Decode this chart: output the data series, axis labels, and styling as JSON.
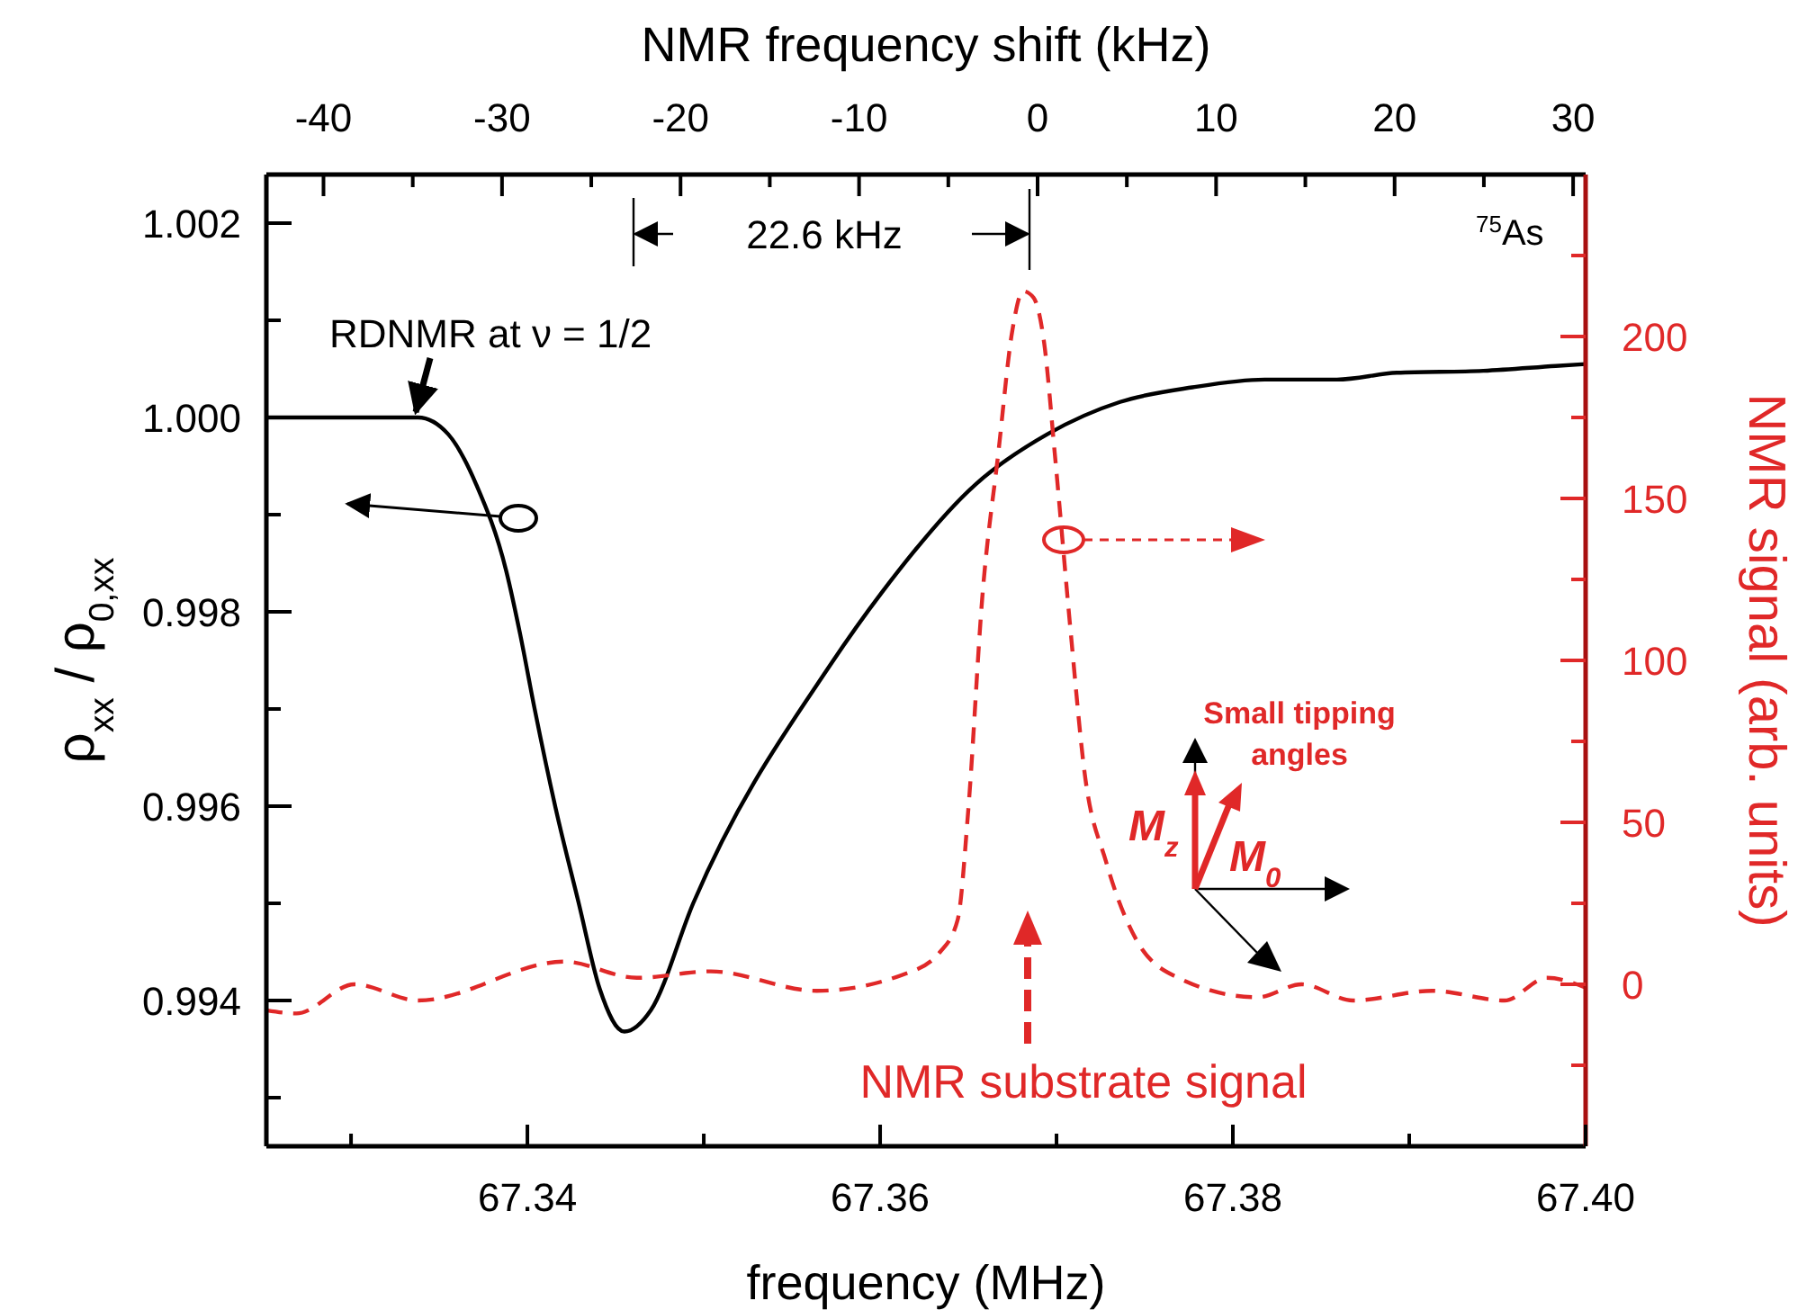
{
  "chart_data": {
    "type": "line",
    "xlabel": "frequency (MHz)",
    "ylabel": "ρ$_{xx}$ / ρ$_{0,xx}$",
    "y2label": "NMR signal (arb. units)",
    "x2label": "NMR frequency shift (kHz)",
    "xlim": [
      67.3252,
      67.4
    ],
    "xticks": [
      {
        "value": 67.33,
        "label": null
      },
      67.34,
      {
        "value": 67.35,
        "label": null
      },
      67.36,
      {
        "value": 67.37,
        "label": null
      },
      67.38,
      {
        "value": 67.39,
        "label": null
      },
      {
        "value": 67.4,
        "label": "67.40"
      }
    ],
    "x2lim": [
      -43.2,
      30.7
    ],
    "x2ticks": [
      -40,
      {
        "value": -35,
        "label": null
      },
      -30,
      {
        "value": -25,
        "label": null
      },
      -20,
      {
        "value": -15,
        "label": null
      },
      -10,
      {
        "value": -5,
        "label": null
      },
      0,
      {
        "value": 5,
        "label": null
      },
      10,
      {
        "value": 15,
        "label": null
      },
      20,
      {
        "value": 25,
        "label": null
      },
      30
    ],
    "ylim": [
      0.9925,
      1.0025
    ],
    "yticks": [
      {
        "value": 0.993,
        "label": null
      },
      0.994,
      {
        "value": 0.995,
        "label": null
      },
      0.996,
      {
        "value": 0.997,
        "label": null
      },
      0.998,
      {
        "value": 0.999,
        "label": null
      },
      {
        "value": 1,
        "label": "1.000"
      },
      {
        "value": 1.001,
        "label": null
      },
      1.002
    ],
    "y2lim": [
      -50,
      250
    ],
    "y2ticks": [
      {
        "value": -25,
        "label": null
      },
      0,
      {
        "value": 25,
        "label": null
      },
      50,
      {
        "value": 75,
        "label": null
      },
      100,
      {
        "value": 125,
        "label": null
      },
      150,
      {
        "value": 175,
        "label": null
      },
      200,
      {
        "value": 225,
        "label": null
      }
    ],
    "series": [
      {
        "color": "#000000",
        "line_style": "solid",
        "x": [
          67.3252,
          67.3338,
          67.3355,
          67.3371,
          67.3388,
          67.3396,
          67.3404,
          67.3416,
          67.3429,
          67.3441,
          67.3455,
          67.347,
          67.3494,
          67.3572,
          67.3601,
          67.3654,
          67.3695,
          67.3736,
          67.3777,
          67.3818,
          67.3859,
          67.3893,
          67.3942,
          67.3983,
          67.4
        ],
        "values": [
          1.0,
          1.0,
          0.99983,
          0.99931,
          0.99842,
          0.99776,
          0.99701,
          0.99598,
          0.99501,
          0.99412,
          0.99368,
          0.9939,
          0.995,
          0.99746,
          0.9982,
          0.99931,
          0.99983,
          1.00016,
          1.00031,
          1.00039,
          1.00039,
          1.00046,
          1.00048,
          1.00053,
          1.00055
        ]
      },
      {
        "axis": "y2",
        "color": "#e02828",
        "line_style": "dashed",
        "x": [
          67.3252,
          67.3269,
          67.3302,
          67.3338,
          67.3421,
          67.3462,
          67.3504,
          67.3564,
          67.3613,
          67.3634,
          67.3644,
          67.365,
          67.3658,
          67.3667,
          67.3675,
          67.3681,
          67.3687,
          67.3693,
          67.3699,
          67.3708,
          67.3716,
          67.3728,
          67.3745,
          67.3769,
          67.3814,
          67.3839,
          67.3868,
          67.3913,
          67.3954,
          67.3978,
          67.4
        ],
        "values": [
          -8,
          -9,
          0,
          -5,
          7,
          2,
          4,
          -2,
          3,
          10,
          20,
          54,
          120,
          164,
          202,
          214,
          212,
          198,
          164,
          109,
          65,
          38,
          14,
          2,
          -4,
          0,
          -5,
          -2,
          -5,
          2,
          -1
        ]
      }
    ],
    "annotations": [
      "RDNMR at ν = 1/2",
      "22.6 kHz",
      "$^{75}$As",
      "NMR substrate signal",
      "Small tipping angles",
      "M$_{z}$",
      "M$_{0}$"
    ]
  }
}
